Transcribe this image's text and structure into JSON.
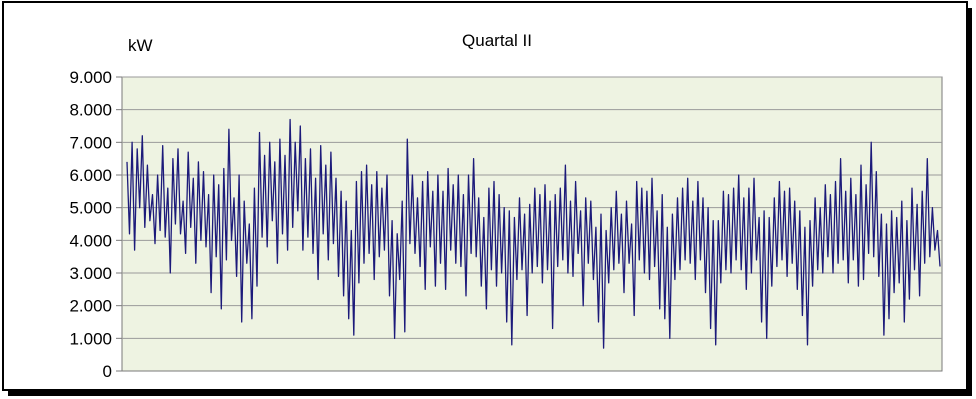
{
  "chart_data": {
    "type": "line",
    "title": "Quartal II",
    "ylabel": "kW",
    "xlabel": "",
    "ylim": [
      0,
      9000
    ],
    "y_ticks": [
      "9.000",
      "8.000",
      "7.000",
      "6.000",
      "5.000",
      "4.000",
      "3.000",
      "2.000",
      "1.000",
      "0"
    ],
    "y_tick_values": [
      9000,
      8000,
      7000,
      6000,
      5000,
      4000,
      3000,
      2000,
      1000,
      0
    ],
    "grid": "horizontal",
    "legend": "none",
    "series": [
      {
        "color": "#1c1a7a",
        "values": [
          6400,
          4200,
          7000,
          3700,
          6800,
          5000,
          7200,
          4400,
          6300,
          4600,
          5400,
          3900,
          6000,
          4300,
          6900,
          4100,
          5600,
          3000,
          6500,
          4500,
          6800,
          4200,
          5200,
          3600,
          6700,
          4400,
          5900,
          3300,
          6400,
          4000,
          6100,
          3800,
          5400,
          2400,
          6000,
          3500,
          5700,
          1900,
          6200,
          3400,
          7400,
          4000,
          5300,
          2900,
          6000,
          1500,
          5200,
          3300,
          4500,
          1600,
          5600,
          2600,
          7300,
          4100,
          6600,
          3800,
          7000,
          4600,
          6400,
          3300,
          7100,
          4200,
          6600,
          3700,
          7700,
          4400,
          7000,
          4900,
          7500,
          3700,
          6500,
          4100,
          6800,
          3600,
          5900,
          2800,
          6900,
          4200,
          6300,
          3400,
          6700,
          3900,
          5900,
          2900,
          5500,
          2300,
          5200,
          1600,
          4300,
          1100,
          5800,
          2700,
          6100,
          3300,
          6300,
          3600,
          5700,
          2800,
          6100,
          3500,
          5600,
          3700,
          6000,
          2300,
          4600,
          1000,
          4200,
          2800,
          5200,
          1200,
          7100,
          3900,
          6000,
          3600,
          5300,
          3200,
          5800,
          2500,
          6100,
          3800,
          5500,
          2600,
          6000,
          3300,
          5500,
          2500,
          6200,
          3700,
          5700,
          3300,
          6000,
          3200,
          5400,
          2300,
          6000,
          3600,
          6500,
          3500,
          5300,
          2600,
          4700,
          1900,
          5600,
          3100,
          5800,
          2600,
          5400,
          3000,
          5000,
          1500,
          4900,
          800,
          4700,
          2800,
          5300,
          3100,
          4800,
          1700,
          5100,
          3000,
          5600,
          3200,
          5400,
          2700,
          5700,
          3100,
          5200,
          1300,
          5400,
          3200,
          5600,
          3400,
          6300,
          3000,
          5200,
          2900,
          5800,
          3600,
          4900,
          2000,
          5300,
          3300,
          5200,
          2800,
          4400,
          1500,
          4800,
          700,
          4300,
          2700,
          5000,
          3100,
          5500,
          3300,
          4800,
          2400,
          5200,
          3300,
          4500,
          1700,
          5800,
          3400,
          5600,
          3000,
          5500,
          2800,
          5900,
          3200,
          4900,
          1900,
          5400,
          1600,
          4400,
          1000,
          4800,
          2800,
          5300,
          3100,
          5600,
          3400,
          5900,
          3300,
          5200,
          2800,
          5800,
          3400,
          5300,
          2400,
          5000,
          1300,
          4600,
          800,
          4600,
          2700,
          5500,
          3100,
          5400,
          3000,
          5600,
          3400,
          6000,
          3100,
          5300,
          2500,
          5600,
          3000,
          5900,
          3400,
          4700,
          1500,
          4900,
          1000,
          4700,
          2600,
          5300,
          3200,
          5800,
          3400,
          5500,
          2900,
          5600,
          3300,
          5200,
          2500,
          4900,
          1700,
          4400,
          800,
          4600,
          2600,
          5300,
          3100,
          5000,
          3000,
          5700,
          3500,
          5400,
          3000,
          5800,
          3300,
          6500,
          3400,
          5500,
          2700,
          5900,
          3400,
          5400,
          2600,
          6300,
          2800,
          5700,
          3600,
          7000,
          3500,
          6100,
          2900,
          4800,
          1100,
          4500,
          1600,
          4900,
          2400,
          4700,
          2700,
          5200,
          1500,
          4600,
          2200,
          5600,
          3100,
          5100,
          2300,
          5500,
          3300,
          6500,
          3500,
          5000,
          3700,
          4300,
          3200
        ]
      }
    ]
  }
}
